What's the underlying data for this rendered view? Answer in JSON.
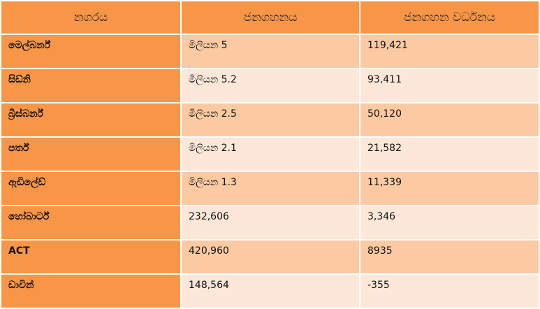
{
  "colors": {
    "header": "#F79646",
    "row_odd": "#FBCAA2",
    "row_even": "#FDE7D8"
  },
  "headers": [
    "නගරය",
    "ජනගහනය",
    "ජනගහන වර්ධනය"
  ],
  "rows": [
    {
      "city": "මෙල්බර්න්",
      "population": "මිලියන 5",
      "growth": "119,421"
    },
    {
      "city": "සිඩ්නි",
      "population": "මිලියන 5.2",
      "growth": "93,411"
    },
    {
      "city": "බ්‍රිස්බර්න්",
      "population": "මිලියන 2.5",
      "growth": "50,120"
    },
    {
      "city": "පර්ත්",
      "population": "මිලියන 2.1",
      "growth": "21,582"
    },
    {
      "city": "ඇඩිලේඩ්",
      "population": "මිලියන 1.3",
      "growth": "11,339"
    },
    {
      "city": "හෝබාර්ට්",
      "population": "232,606",
      "growth": "3,346"
    },
    {
      "city": "ACT",
      "population": "420,960",
      "growth": "8935"
    },
    {
      "city": "ඩාවින්",
      "population": "148,564",
      "growth": "-355"
    }
  ]
}
